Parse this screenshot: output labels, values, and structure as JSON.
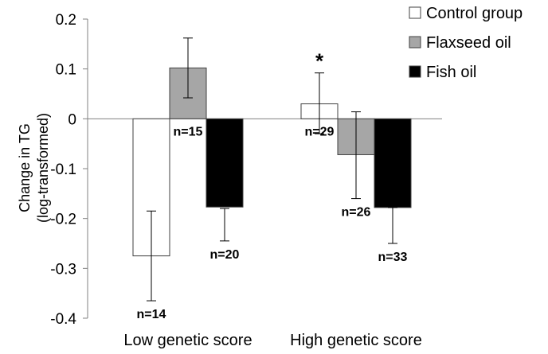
{
  "chart_data": {
    "type": "bar",
    "ylabel_lines": [
      "Change in TG",
      "(log-transformed)"
    ],
    "ylim": [
      -0.4,
      0.2
    ],
    "yticks": [
      0.2,
      0.1,
      0,
      -0.1,
      -0.2,
      -0.3,
      -0.4
    ],
    "ytick_labels": [
      "0.2",
      "0.1",
      "0",
      "-0.1",
      "-0.2",
      "-0.3",
      "-0.4"
    ],
    "categories": [
      "Low genetic score",
      "High genetic score"
    ],
    "legend_position": "top-right",
    "grid": false,
    "series": [
      {
        "name": "Control group",
        "color": "#ffffff",
        "values": [
          -0.275,
          0.03
        ],
        "error_low": [
          -0.365,
          -0.03
        ],
        "error_high": [
          -0.185,
          0.092
        ],
        "n_labels": [
          "n=14",
          "n=29"
        ]
      },
      {
        "name": "Flaxseed oil",
        "color": "#a6a6a6",
        "values": [
          0.102,
          -0.072
        ],
        "error_low": [
          0.042,
          -0.16
        ],
        "error_high": [
          0.162,
          0.014
        ],
        "n_labels": [
          "n=15",
          "n=26"
        ]
      },
      {
        "name": "Fish oil",
        "color": "#000000",
        "values": [
          -0.177,
          -0.178
        ],
        "error_low": [
          -0.245,
          -0.25
        ],
        "error_high": [
          -0.18,
          -0.178
        ],
        "n_labels": [
          "n=20",
          "n=33"
        ]
      }
    ],
    "annotations": [
      {
        "text": "*",
        "category_index": 1,
        "series_index": 0
      }
    ]
  }
}
